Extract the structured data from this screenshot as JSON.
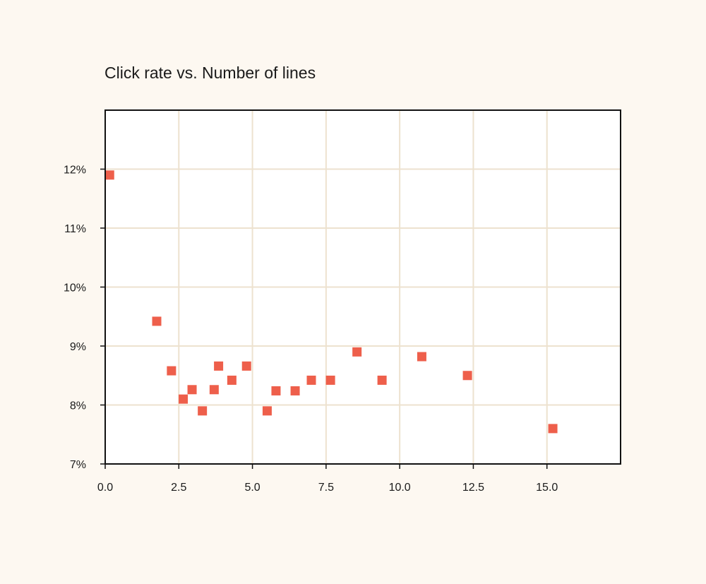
{
  "chart_data": {
    "type": "scatter",
    "title": "Click rate vs. Number of lines",
    "xlabel": "",
    "ylabel": "",
    "xlim": [
      0,
      17.5
    ],
    "ylim": [
      7,
      13
    ],
    "xticks": [
      0,
      2.5,
      5,
      7.5,
      10,
      12.5,
      15
    ],
    "xtick_labels": [
      "0.0",
      "2.5",
      "5.0",
      "7.5",
      "10.0",
      "12.5",
      "15.0"
    ],
    "yticks": [
      7,
      8,
      9,
      10,
      11,
      12
    ],
    "ytick_labels": [
      "7%",
      "8%",
      "9%",
      "10%",
      "11%",
      "12%"
    ],
    "grid": true,
    "legend": "none",
    "colors": {
      "marker": "#EE5F4B",
      "grid": "#EDE2CF",
      "axis": "#111111",
      "plot_bg": "#FFFFFF",
      "page_bg": "#FDF8F1"
    },
    "series": [
      {
        "points": [
          {
            "x": 0.15,
            "y": 11.9
          },
          {
            "x": 1.75,
            "y": 9.42
          },
          {
            "x": 2.25,
            "y": 8.58
          },
          {
            "x": 2.65,
            "y": 8.1
          },
          {
            "x": 2.95,
            "y": 8.26
          },
          {
            "x": 3.3,
            "y": 7.9
          },
          {
            "x": 3.7,
            "y": 8.26
          },
          {
            "x": 3.85,
            "y": 8.66
          },
          {
            "x": 4.3,
            "y": 8.42
          },
          {
            "x": 4.8,
            "y": 8.66
          },
          {
            "x": 5.5,
            "y": 7.9
          },
          {
            "x": 5.8,
            "y": 8.24
          },
          {
            "x": 6.45,
            "y": 8.24
          },
          {
            "x": 7.0,
            "y": 8.42
          },
          {
            "x": 7.65,
            "y": 8.42
          },
          {
            "x": 8.55,
            "y": 8.9
          },
          {
            "x": 9.4,
            "y": 8.42
          },
          {
            "x": 10.75,
            "y": 8.82
          },
          {
            "x": 12.3,
            "y": 8.5
          },
          {
            "x": 15.2,
            "y": 7.6
          }
        ]
      }
    ]
  }
}
